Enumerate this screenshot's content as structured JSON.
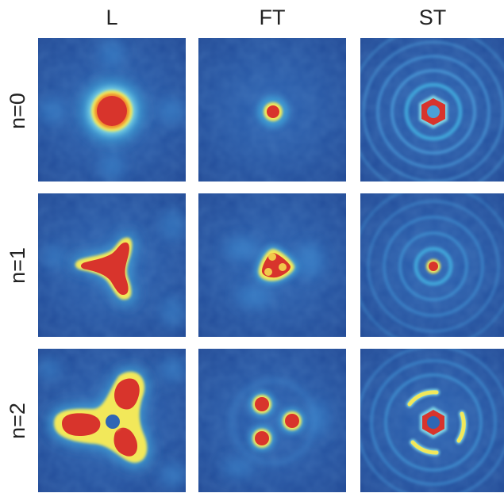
{
  "columns": [
    {
      "label": "L"
    },
    {
      "label": "FT"
    },
    {
      "label": "ST"
    }
  ],
  "rows": [
    {
      "label": "n=0"
    },
    {
      "label": "n=1"
    },
    {
      "label": "n=2"
    }
  ],
  "colors": {
    "background_deep": "#1c3f8c",
    "background_mid": "#2c5fae",
    "halo": "#3fa3d8",
    "cyan": "#7fd6e6",
    "yellow": "#f2e85a",
    "orange": "#f08a2a",
    "red": "#d8342c"
  }
}
